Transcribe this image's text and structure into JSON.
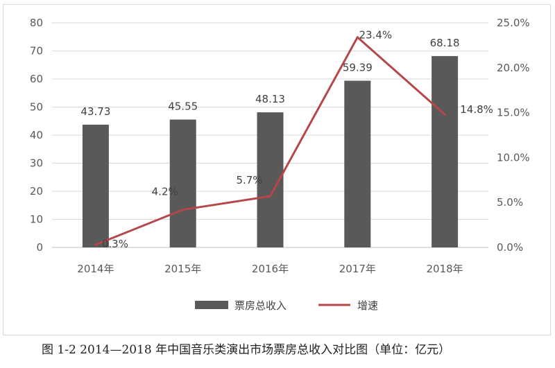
{
  "chart_data": {
    "type": "bar",
    "categories": [
      "2014年",
      "2015年",
      "2016年",
      "2017年",
      "2018年"
    ],
    "series": [
      {
        "name": "票房总收入",
        "type": "bar",
        "axis": "left",
        "values": [
          43.73,
          45.55,
          48.13,
          59.39,
          68.18
        ],
        "labels": [
          "43.73",
          "45.55",
          "48.13",
          "59.39",
          "68.18"
        ],
        "color": "#595959"
      },
      {
        "name": "增速",
        "type": "line",
        "axis": "right",
        "values": [
          0.3,
          4.2,
          5.7,
          23.4,
          14.8
        ],
        "labels": [
          "0.3%",
          "4.2%",
          "5.7%",
          "23.4%",
          "14.8%"
        ],
        "color": "#b5464a"
      }
    ],
    "left_axis": {
      "min": 0,
      "max": 80,
      "ticks": [
        "0",
        "10",
        "20",
        "30",
        "40",
        "50",
        "60",
        "70",
        "80"
      ]
    },
    "right_axis": {
      "min": 0,
      "max": 25,
      "ticks": [
        "0.0%",
        "5.0%",
        "10.0%",
        "15.0%",
        "20.0%",
        "25.0%"
      ]
    },
    "grid": true,
    "legend_position": "bottom"
  },
  "caption": "图 1-2  2014—2018 年中国音乐类演出市场票房总收入对比图（单位：亿元）"
}
